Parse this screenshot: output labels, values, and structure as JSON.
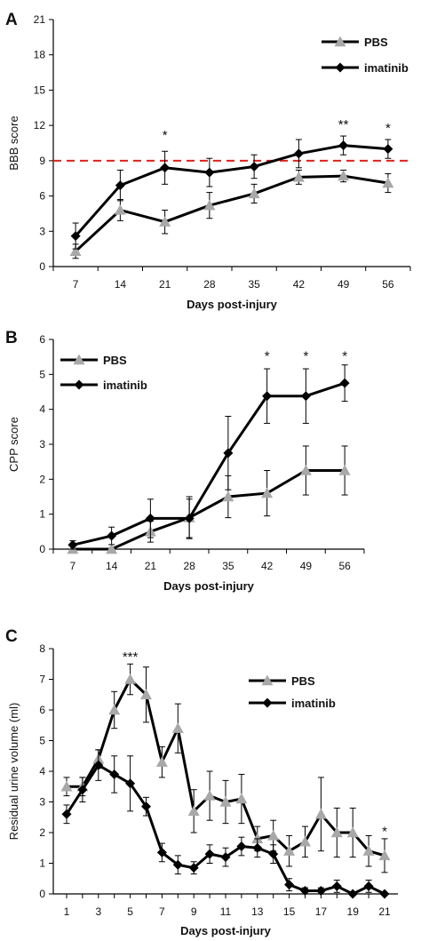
{
  "chart_data": [
    {
      "type": "line",
      "panel": "A",
      "xlabel": "Days post-injury",
      "ylabel": "BBB score",
      "x": [
        7,
        14,
        21,
        28,
        35,
        42,
        49,
        56
      ],
      "xticks": [
        "7",
        "14",
        "21",
        "28",
        "35",
        "42",
        "49",
        "56"
      ],
      "yticks": [
        "0",
        "3",
        "6",
        "9",
        "12",
        "15",
        "18",
        "21"
      ],
      "ylim": [
        0,
        21
      ],
      "reference_line": {
        "y": 9,
        "color": "#e0201b",
        "style": "dashed"
      },
      "legend_position": "top-right",
      "series": [
        {
          "name": "PBS",
          "marker": "triangle",
          "color": "#a8a8a8",
          "values": [
            1.3,
            4.8,
            3.8,
            5.2,
            6.2,
            7.6,
            7.7,
            7.1
          ],
          "errors": [
            0.6,
            0.9,
            1.0,
            1.1,
            0.8,
            0.6,
            0.5,
            0.8
          ]
        },
        {
          "name": "imatinib",
          "marker": "diamond",
          "color": "#000000",
          "values": [
            2.6,
            6.9,
            8.4,
            8.0,
            8.5,
            9.6,
            10.3,
            10.0
          ],
          "errors": [
            1.1,
            1.3,
            1.4,
            1.2,
            1.0,
            1.2,
            0.8,
            0.8
          ]
        }
      ],
      "annotations": [
        {
          "x": 21,
          "y": 10.8,
          "text": "*"
        },
        {
          "x": 49,
          "y": 11.7,
          "text": "**"
        },
        {
          "x": 56,
          "y": 11.4,
          "text": "*"
        }
      ]
    },
    {
      "type": "line",
      "panel": "B",
      "xlabel": "Days post-injury",
      "ylabel": "CPP score",
      "x": [
        7,
        14,
        21,
        28,
        35,
        42,
        49,
        56
      ],
      "xticks": [
        "7",
        "14",
        "21",
        "28",
        "35",
        "42",
        "49",
        "56"
      ],
      "yticks": [
        "0",
        "1",
        "2",
        "3",
        "4",
        "5",
        "6"
      ],
      "ylim": [
        0,
        6
      ],
      "legend_position": "top-left",
      "series": [
        {
          "name": "PBS",
          "marker": "triangle",
          "color": "#a8a8a8",
          "values": [
            0,
            0,
            0.5,
            0.9,
            1.5,
            1.6,
            2.25,
            2.25
          ],
          "errors": [
            0,
            0,
            0.3,
            0.6,
            0.6,
            0.65,
            0.7,
            0.7
          ]
        },
        {
          "name": "imatinib",
          "marker": "diamond",
          "color": "#000000",
          "values": [
            0.12,
            0.38,
            0.88,
            0.88,
            2.75,
            4.38,
            4.38,
            4.75
          ],
          "errors": [
            0.12,
            0.25,
            0.55,
            0.55,
            1.05,
            0.78,
            0.78,
            0.52
          ]
        }
      ],
      "annotations": [
        {
          "x": 42,
          "y": 5.4,
          "text": "*"
        },
        {
          "x": 49,
          "y": 5.4,
          "text": "*"
        },
        {
          "x": 56,
          "y": 5.4,
          "text": "*"
        }
      ]
    },
    {
      "type": "line",
      "panel": "C",
      "xlabel": "Days post-injury",
      "ylabel": "Residual urine volume (ml)",
      "x": [
        1,
        2,
        3,
        4,
        5,
        6,
        7,
        8,
        9,
        10,
        11,
        12,
        13,
        14,
        15,
        16,
        17,
        18,
        19,
        20,
        21
      ],
      "xticks": [
        "1",
        "3",
        "5",
        "7",
        "9",
        "11",
        "13",
        "15",
        "17",
        "19",
        "21"
      ],
      "xtick_values": [
        1,
        3,
        5,
        7,
        9,
        11,
        13,
        15,
        17,
        19,
        21
      ],
      "yticks": [
        "0",
        "1",
        "2",
        "3",
        "4",
        "5",
        "6",
        "7",
        "8"
      ],
      "ylim": [
        0,
        8
      ],
      "xlim": [
        1,
        21
      ],
      "legend_position": "top-right",
      "series": [
        {
          "name": "PBS",
          "marker": "triangle",
          "color": "#a8a8a8",
          "values": [
            3.5,
            3.5,
            4.4,
            6.0,
            7.0,
            6.5,
            4.3,
            5.4,
            2.7,
            3.2,
            3.0,
            3.1,
            1.8,
            1.9,
            1.4,
            1.7,
            2.6,
            2.0,
            2.0,
            1.4,
            1.25
          ],
          "errors": [
            0.3,
            0.3,
            0.3,
            0.6,
            0.5,
            0.9,
            0.5,
            0.8,
            0.7,
            0.8,
            0.7,
            0.8,
            0.4,
            0.5,
            0.5,
            0.5,
            1.2,
            0.8,
            0.8,
            0.5,
            0.55
          ]
        },
        {
          "name": "imatinib",
          "marker": "diamond",
          "color": "#000000",
          "values": [
            2.6,
            3.4,
            4.2,
            3.9,
            3.6,
            2.85,
            1.35,
            0.95,
            0.85,
            1.3,
            1.2,
            1.55,
            1.5,
            1.3,
            0.3,
            0.1,
            0.1,
            0.25,
            0.0,
            0.25,
            0.0
          ],
          "errors": [
            0.3,
            0.4,
            0.5,
            0.6,
            0.9,
            0.3,
            0.3,
            0.3,
            0.2,
            0.3,
            0.3,
            0.3,
            0.3,
            0.3,
            0.2,
            0.1,
            0.1,
            0.2,
            0.05,
            0.2,
            0.05
          ]
        }
      ],
      "annotations": [
        {
          "x": 5,
          "y": 7.6,
          "text": "***"
        },
        {
          "x": 21,
          "y": 1.9,
          "text": "*"
        }
      ]
    }
  ]
}
